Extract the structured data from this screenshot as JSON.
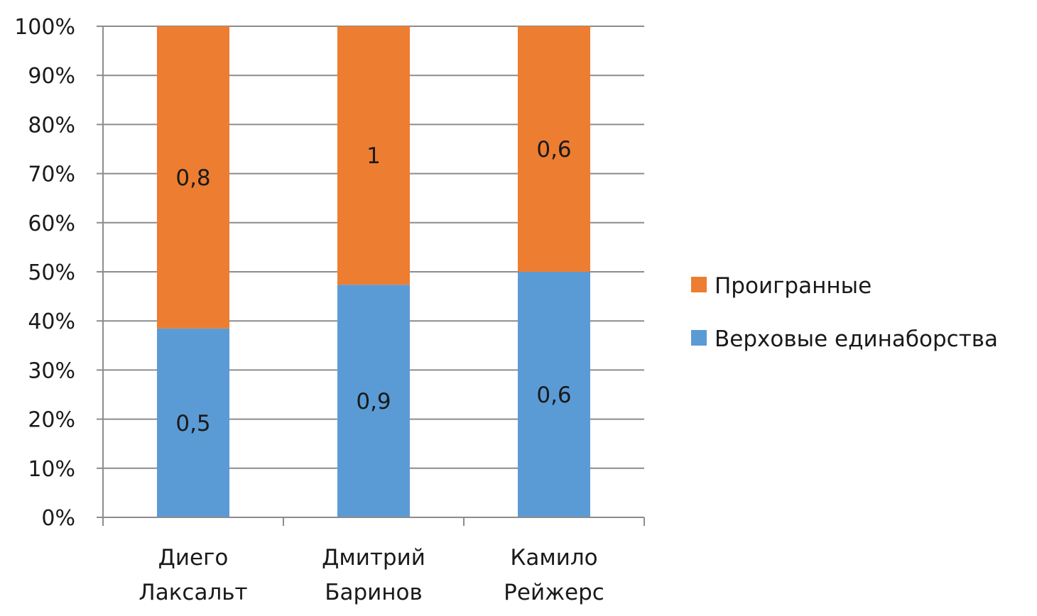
{
  "chart_data": {
    "type": "bar",
    "stacked": "percent",
    "categories": [
      [
        "Диего",
        "Лаксальт"
      ],
      [
        "Дмитрий",
        "Баринов"
      ],
      [
        "Камило",
        "Рейжерс"
      ]
    ],
    "series": [
      {
        "name": "Верховые единаборства",
        "values": [
          0.5,
          0.9,
          0.6
        ],
        "labels": [
          "0,5",
          "0,9",
          "0,6"
        ],
        "color": "#5B9BD5"
      },
      {
        "name": "Проигранные",
        "values": [
          0.8,
          1,
          0.6
        ],
        "labels": [
          "0,8",
          "1",
          "0,6"
        ],
        "color": "#ED7D31"
      }
    ],
    "y_ticks": [
      "0%",
      "10%",
      "20%",
      "30%",
      "40%",
      "50%",
      "60%",
      "70%",
      "80%",
      "90%",
      "100%"
    ],
    "ylim": [
      0,
      100
    ],
    "grid": true,
    "legend_position": "right",
    "legend_order": [
      "Проигранные",
      "Верховые единаборства"
    ],
    "title": "",
    "xlabel": "",
    "ylabel": ""
  }
}
